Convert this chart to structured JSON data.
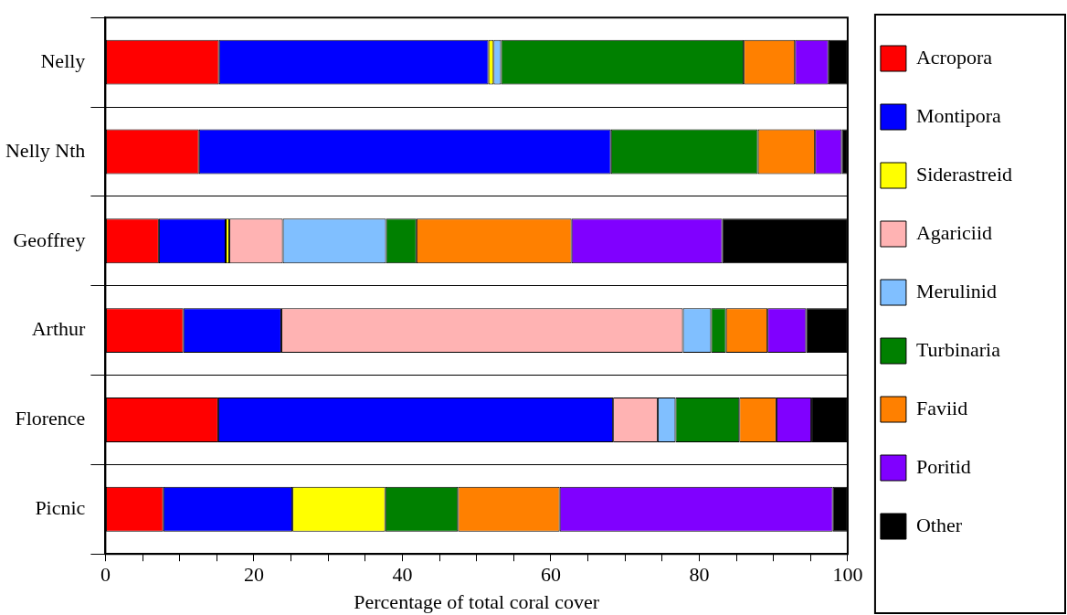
{
  "chart_data": {
    "type": "bar",
    "orientation": "horizontal",
    "stacked": true,
    "xlabel": "Percentage of total coral cover",
    "categories": [
      "Nelly",
      "Nelly Nth",
      "Geoffrey",
      "Arthur",
      "Florence",
      "Picnic"
    ],
    "series": [
      {
        "name": "Acropora",
        "color": "#ff0000",
        "values": [
          15.3,
          12.6,
          7.2,
          10.5,
          15.2,
          7.8
        ]
      },
      {
        "name": "Montipora",
        "color": "#0000ff",
        "values": [
          36.3,
          55.5,
          9.0,
          13.2,
          53.2,
          17.4
        ]
      },
      {
        "name": "Siderastreid",
        "color": "#ffff00",
        "values": [
          0.7,
          null,
          0.5,
          null,
          null,
          12.5
        ]
      },
      {
        "name": "Agariciid",
        "color": "#ffb3b3",
        "values": [
          null,
          null,
          7.2,
          54.1,
          6.0,
          null
        ]
      },
      {
        "name": "Merulinid",
        "color": "#80bfff",
        "values": [
          1.0,
          null,
          13.9,
          3.8,
          2.4,
          null
        ]
      },
      {
        "name": "Turbinaria",
        "color": "#008000",
        "values": [
          32.7,
          19.8,
          4.1,
          2.0,
          8.6,
          9.8
        ]
      },
      {
        "name": "Faviid",
        "color": "#ff8000",
        "values": [
          6.9,
          7.7,
          20.9,
          5.6,
          5.0,
          13.7
        ]
      },
      {
        "name": "Poritid",
        "color": "#8000ff",
        "values": [
          4.5,
          3.6,
          20.3,
          5.2,
          4.7,
          36.8
        ]
      },
      {
        "name": "Other",
        "color": "#000000",
        "values": [
          2.6,
          0.8,
          16.9,
          5.6,
          4.9,
          2.0
        ]
      }
    ],
    "xlim": [
      0,
      100
    ],
    "xticks": [
      0,
      {
        "value": 5,
        "label": null
      },
      {
        "value": 10,
        "label": null
      },
      {
        "value": 15,
        "label": null
      },
      20,
      {
        "value": 25,
        "label": null
      },
      {
        "value": 30,
        "label": null
      },
      {
        "value": 35,
        "label": null
      },
      40,
      {
        "value": 45,
        "label": null
      },
      {
        "value": 50,
        "label": null
      },
      {
        "value": 55,
        "label": null
      },
      60,
      {
        "value": 65,
        "label": null
      },
      {
        "value": 70,
        "label": null
      },
      {
        "value": 75,
        "label": null
      },
      80,
      {
        "value": 85,
        "label": null
      },
      {
        "value": 90,
        "label": null
      },
      {
        "value": 95,
        "label": null
      },
      100
    ],
    "grid": "y",
    "legend": "right"
  }
}
